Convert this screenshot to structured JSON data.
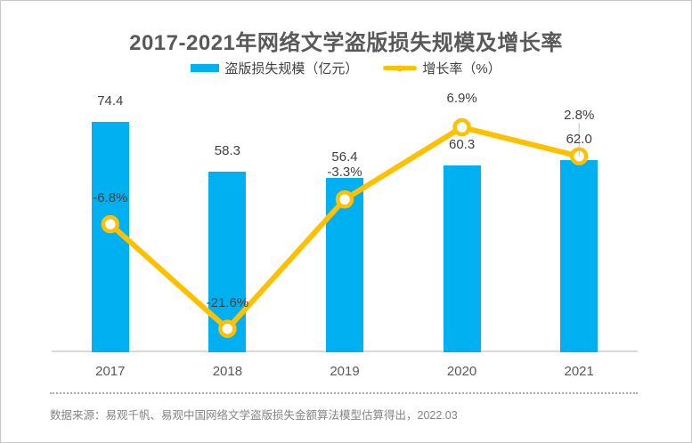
{
  "title": "2017-2021年网络文学盗版损失规模及增长率",
  "legend": {
    "items": [
      {
        "label": "盗版损失规模（亿元）",
        "type": "bar",
        "color": "#00B0F0"
      },
      {
        "label": "增长率（%）",
        "type": "line",
        "color": "#FFC000"
      }
    ]
  },
  "chart_data": {
    "type": "combo-bar-line",
    "title": "2017-2021年网络文学盗版损失规模及增长率",
    "categories": [
      "2017",
      "2018",
      "2019",
      "2020",
      "2021"
    ],
    "series": [
      {
        "name": "盗版损失规模（亿元）",
        "type": "bar",
        "color": "#00B0F0",
        "values": [
          74.4,
          58.3,
          56.4,
          60.3,
          62.0
        ],
        "labels": [
          "74.4",
          "58.3",
          "56.4",
          "60.3",
          "62.0"
        ]
      },
      {
        "name": "增长率（%）",
        "type": "line",
        "color": "#FFC000",
        "marker": "circle-white-fill",
        "values": [
          -6.8,
          -21.6,
          -3.3,
          6.9,
          2.8
        ],
        "labels": [
          "-6.8%",
          "-21.6%",
          "-3.3%",
          "6.9%",
          "2.8%"
        ]
      }
    ],
    "bar_ylim": [
      0,
      86
    ],
    "line_ylim": [
      -25,
      13
    ],
    "grid": false,
    "data_labels": true,
    "legend_position": "top-center"
  },
  "source": "数据来源：易观千帆、易观中国网络文学盗版损失金额算法模型估算得出，2022.03",
  "colors": {
    "bar": "#00B0F0",
    "line": "#FFC000",
    "title_text": "#595959",
    "label_text": "#404040",
    "axis_line": "#D9D9D9",
    "source_text": "#848484"
  }
}
